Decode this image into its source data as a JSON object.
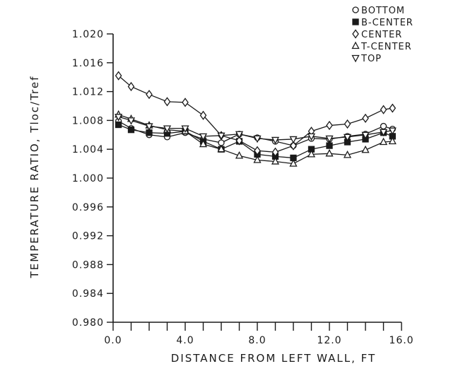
{
  "chart_data": {
    "type": "line",
    "title": "",
    "xlabel": "DISTANCE FROM LEFT WALL, FT",
    "ylabel": "TEMPERATURE RATIO, Tloc/Tref",
    "xlim": [
      0,
      16
    ],
    "ylim": [
      0.98,
      1.02
    ],
    "x_ticks": [
      0,
      4,
      8,
      12,
      16
    ],
    "x_tick_labels": [
      "0.0",
      "4.0",
      "8.0",
      "12.0",
      "16.0"
    ],
    "x_minor_step": 1,
    "y_ticks": [
      0.98,
      0.984,
      0.988,
      0.992,
      0.996,
      1.0,
      1.004,
      1.008,
      1.012,
      1.016,
      1.02
    ],
    "y_tick_labels": [
      "0.980",
      "0.984",
      "0.988",
      "0.992",
      "0.996",
      "1.000",
      "1.004",
      "1.008",
      "1.012",
      "1.016",
      "1.020"
    ],
    "grid": false,
    "legend_position": "top-right, outside plot",
    "series": [
      {
        "name": "BOTTOM",
        "marker": "circle",
        "x": [
          0.3,
          1.0,
          2.0,
          3.0,
          4.0,
          5.0,
          6.0,
          7.0,
          8.0,
          9.0,
          10.0,
          11.0,
          12.0,
          13.0,
          14.0,
          15.0,
          15.5
        ],
        "y": [
          1.0079,
          1.0069,
          1.006,
          1.0057,
          1.0063,
          1.0054,
          1.0049,
          1.0061,
          1.0056,
          1.0051,
          1.0045,
          1.0055,
          1.0054,
          1.0058,
          1.0061,
          1.0072,
          1.0068
        ]
      },
      {
        "name": "B-CENTER",
        "marker": "square",
        "x": [
          0.3,
          1.0,
          2.0,
          3.0,
          4.0,
          5.0,
          6.0,
          7.0,
          8.0,
          9.0,
          10.0,
          11.0,
          12.0,
          13.0,
          14.0,
          15.0,
          15.5
        ],
        "y": [
          1.0074,
          1.0067,
          1.0063,
          1.0062,
          1.0065,
          1.0051,
          1.004,
          1.0051,
          1.0033,
          1.003,
          1.0028,
          1.004,
          1.0045,
          1.005,
          1.0054,
          1.0063,
          1.0058
        ]
      },
      {
        "name": "CENTER",
        "marker": "diamond",
        "x": [
          0.3,
          1.0,
          2.0,
          3.0,
          4.0,
          5.0,
          6.0,
          7.0,
          8.0,
          9.0,
          10.0,
          11.0,
          12.0,
          13.0,
          14.0,
          15.0,
          15.5
        ],
        "y": [
          1.0142,
          1.0127,
          1.0116,
          1.0106,
          1.0105,
          1.0087,
          1.0059,
          1.0052,
          1.0038,
          1.0036,
          1.0045,
          1.0065,
          1.0073,
          1.0075,
          1.0083,
          1.0095,
          1.0097
        ]
      },
      {
        "name": "T-CENTER",
        "marker": "triangle-up",
        "x": [
          0.3,
          1.0,
          2.0,
          3.0,
          4.0,
          5.0,
          6.0,
          7.0,
          8.0,
          9.0,
          10.0,
          11.0,
          12.0,
          13.0,
          14.0,
          15.0,
          15.5
        ],
        "y": [
          1.0088,
          1.0082,
          1.0073,
          1.0067,
          1.0065,
          1.0047,
          1.004,
          1.0031,
          1.0025,
          1.0023,
          1.002,
          1.0033,
          1.0034,
          1.0032,
          1.0039,
          1.005,
          1.0051
        ]
      },
      {
        "name": "TOP",
        "marker": "triangle-down",
        "x": [
          0.3,
          1.0,
          2.0,
          3.0,
          4.0,
          5.0,
          6.0,
          7.0,
          8.0,
          9.0,
          10.0,
          11.0,
          12.0,
          13.0,
          14.0,
          15.0,
          15.5
        ],
        "y": [
          1.0085,
          1.008,
          1.0072,
          1.0069,
          1.0069,
          1.0058,
          1.0059,
          1.0061,
          1.0055,
          1.0053,
          1.0054,
          1.0058,
          1.0055,
          1.0057,
          1.006,
          1.0064,
          1.0066
        ]
      }
    ]
  }
}
